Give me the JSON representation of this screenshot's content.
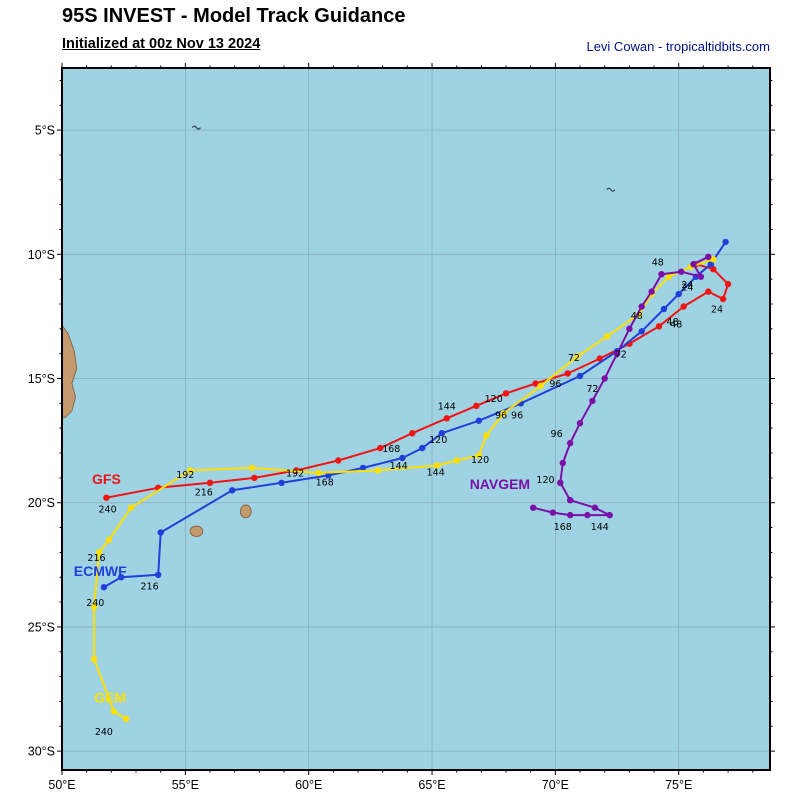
{
  "chart_data": {
    "type": "line",
    "title": "95S INVEST - Model Track Guidance",
    "subtitle": "Initialized at 00z Nov 13 2024",
    "credit": "Levi Cowan - tropicaltidbits.com",
    "map": {
      "lon_min": 50,
      "lon_max": 78.7,
      "lat_top_s": 2.5,
      "lat_bottom_s": 30.76,
      "x_ticks": [
        50,
        55,
        60,
        65,
        70,
        75
      ],
      "x_tick_labels": [
        "50°E",
        "55°E",
        "60°E",
        "65°E",
        "70°E",
        "75°E"
      ],
      "y_ticks": [
        5,
        10,
        15,
        20,
        25,
        30
      ],
      "y_tick_labels": [
        "5°S",
        "10°S",
        "15°S",
        "20°S",
        "25°S",
        "30°S"
      ],
      "grid": true,
      "legend_position": "on-track-labels"
    },
    "colors": {
      "ocean": "#9fd3e4",
      "land": "#c49a6c",
      "land_edge": "#7d5a3c",
      "grid": "#6f8694",
      "border": "#000000",
      "credit_text": "#001489",
      "hour_label": "#000000"
    },
    "series": [
      {
        "name": "GFS",
        "color": "#f01414",
        "name_label": {
          "text": "GFS",
          "lon": 51.8,
          "lat": 19.25
        },
        "points": [
          [
            75.7,
            10.4
          ],
          [
            76.4,
            10.6
          ],
          [
            77.0,
            11.2
          ],
          [
            76.8,
            11.8
          ],
          [
            76.2,
            11.5
          ],
          [
            75.2,
            12.1
          ],
          [
            74.2,
            12.9
          ],
          [
            73.0,
            13.6
          ],
          [
            71.8,
            14.2
          ],
          [
            70.5,
            14.8
          ],
          [
            69.2,
            15.2
          ],
          [
            68.0,
            15.6
          ],
          [
            66.8,
            16.1
          ],
          [
            65.6,
            16.6
          ],
          [
            64.2,
            17.2
          ],
          [
            62.9,
            17.8
          ],
          [
            61.2,
            18.3
          ],
          [
            59.5,
            18.7
          ],
          [
            57.8,
            19.0
          ],
          [
            56.0,
            19.2
          ],
          [
            53.9,
            19.4
          ],
          [
            51.8,
            19.8
          ]
        ],
        "labels": [
          {
            "text": "24",
            "lon": 76.55,
            "lat": 12.35
          },
          {
            "text": "48",
            "lon": 74.9,
            "lat": 12.95
          },
          {
            "text": "96",
            "lon": 70.0,
            "lat": 15.35
          },
          {
            "text": "120",
            "lon": 67.5,
            "lat": 15.95
          },
          {
            "text": "144",
            "lon": 65.6,
            "lat": 16.25
          },
          {
            "text": "168",
            "lon": 63.35,
            "lat": 17.95
          },
          {
            "text": "192",
            "lon": 59.45,
            "lat": 18.95
          },
          {
            "text": "216",
            "lon": 55.75,
            "lat": 19.7
          },
          {
            "text": "240",
            "lon": 51.85,
            "lat": 20.4
          }
        ]
      },
      {
        "name": "ECMWF",
        "color": "#2140d9",
        "name_label": {
          "text": "ECMWF",
          "lon": 51.55,
          "lat": 22.95
        },
        "points": [
          [
            76.9,
            9.5
          ],
          [
            76.3,
            10.4
          ],
          [
            75.7,
            10.9
          ],
          [
            75.0,
            11.6
          ],
          [
            74.4,
            12.2
          ],
          [
            73.5,
            13.1
          ],
          [
            72.5,
            13.9
          ],
          [
            71.0,
            14.9
          ],
          [
            68.6,
            16.0
          ],
          [
            66.9,
            16.7
          ],
          [
            65.4,
            17.2
          ],
          [
            64.6,
            17.8
          ],
          [
            63.8,
            18.2
          ],
          [
            62.2,
            18.6
          ],
          [
            60.8,
            18.9
          ],
          [
            58.9,
            19.2
          ],
          [
            56.9,
            19.5
          ],
          [
            54.0,
            21.2
          ],
          [
            53.9,
            22.9
          ],
          [
            52.4,
            23.0
          ],
          [
            51.7,
            23.4
          ]
        ],
        "labels": [
          {
            "text": "24",
            "lon": 75.35,
            "lat": 11.45
          },
          {
            "text": "48",
            "lon": 74.75,
            "lat": 12.85
          },
          {
            "text": "72",
            "lon": 72.65,
            "lat": 14.15
          },
          {
            "text": "96",
            "lon": 68.45,
            "lat": 16.6
          },
          {
            "text": "120",
            "lon": 65.25,
            "lat": 17.6
          },
          {
            "text": "144",
            "lon": 63.65,
            "lat": 18.65
          },
          {
            "text": "168",
            "lon": 60.65,
            "lat": 19.3
          },
          {
            "text": "216",
            "lon": 53.55,
            "lat": 23.5
          },
          {
            "text": "240",
            "lon": 51.35,
            "lat": 24.15
          }
        ]
      },
      {
        "name": "GEM",
        "color": "#ffdf00",
        "name_label": {
          "text": "GEM",
          "lon": 51.95,
          "lat": 28.05
        },
        "points": [
          [
            76.4,
            10.2
          ],
          [
            75.5,
            10.5
          ],
          [
            74.6,
            10.9
          ],
          [
            73.9,
            11.6
          ],
          [
            73.4,
            12.4
          ],
          [
            72.1,
            13.3
          ],
          [
            70.9,
            14.1
          ],
          [
            69.4,
            15.3
          ],
          [
            67.9,
            16.4
          ],
          [
            67.2,
            17.3
          ],
          [
            66.9,
            18.1
          ],
          [
            66.0,
            18.3
          ],
          [
            65.2,
            18.5
          ],
          [
            62.8,
            18.7
          ],
          [
            60.4,
            18.8
          ],
          [
            57.7,
            18.6
          ],
          [
            55.2,
            18.7
          ],
          [
            52.8,
            20.2
          ],
          [
            51.9,
            21.5
          ],
          [
            51.5,
            22.0
          ],
          [
            51.3,
            24.2
          ],
          [
            51.3,
            26.3
          ],
          [
            52.1,
            28.4
          ],
          [
            52.6,
            28.7
          ]
        ],
        "labels": [
          {
            "text": "48",
            "lon": 73.3,
            "lat": 12.6
          },
          {
            "text": "72",
            "lon": 70.75,
            "lat": 14.3
          },
          {
            "text": "96",
            "lon": 67.8,
            "lat": 16.6
          },
          {
            "text": "120",
            "lon": 66.95,
            "lat": 18.4
          },
          {
            "text": "144",
            "lon": 65.15,
            "lat": 18.9
          },
          {
            "text": "192",
            "lon": 55.0,
            "lat": 19.0
          },
          {
            "text": "216",
            "lon": 51.4,
            "lat": 22.35
          },
          {
            "text": "240",
            "lon": 51.7,
            "lat": 29.35
          }
        ]
      },
      {
        "name": "NAVGEM",
        "color": "#7a10a8",
        "name_label": {
          "text": "NAVGEM",
          "lon": 67.75,
          "lat": 19.45
        },
        "points": [
          [
            76.2,
            10.1
          ],
          [
            75.6,
            10.4
          ],
          [
            75.9,
            10.9
          ],
          [
            75.1,
            10.7
          ],
          [
            74.3,
            10.8
          ],
          [
            73.9,
            11.5
          ],
          [
            73.5,
            12.1
          ],
          [
            73.0,
            13.0
          ],
          [
            72.5,
            14.0
          ],
          [
            72.0,
            15.0
          ],
          [
            71.5,
            15.9
          ],
          [
            71.0,
            16.8
          ],
          [
            70.6,
            17.6
          ],
          [
            70.3,
            18.4
          ],
          [
            70.2,
            19.2
          ],
          [
            70.6,
            19.9
          ],
          [
            71.6,
            20.2
          ],
          [
            72.2,
            20.5
          ],
          [
            71.3,
            20.5
          ],
          [
            70.6,
            20.5
          ],
          [
            69.9,
            20.4
          ],
          [
            69.1,
            20.2
          ]
        ],
        "labels": [
          {
            "text": "24",
            "lon": 75.35,
            "lat": 11.35
          },
          {
            "text": "48",
            "lon": 74.15,
            "lat": 10.45
          },
          {
            "text": "72",
            "lon": 71.5,
            "lat": 15.55
          },
          {
            "text": "96",
            "lon": 70.05,
            "lat": 17.35
          },
          {
            "text": "120",
            "lon": 69.6,
            "lat": 19.2
          },
          {
            "text": "144",
            "lon": 71.8,
            "lat": 21.1
          },
          {
            "text": "168",
            "lon": 70.3,
            "lat": 21.1
          }
        ]
      }
    ],
    "islands": [
      {
        "name": "madagascar-coast",
        "type": "polygon",
        "pts": [
          [
            50.0,
            12.85
          ],
          [
            50.25,
            13.2
          ],
          [
            50.5,
            13.9
          ],
          [
            50.6,
            14.6
          ],
          [
            50.4,
            15.2
          ],
          [
            50.55,
            15.75
          ],
          [
            50.4,
            16.3
          ],
          [
            50.15,
            16.55
          ],
          [
            50.0,
            16.6
          ]
        ]
      },
      {
        "name": "reunion",
        "type": "ellipse",
        "c": [
          55.45,
          21.15
        ],
        "rx": 0.26,
        "ry": 0.21
      },
      {
        "name": "mauritius",
        "type": "ellipse",
        "c": [
          57.45,
          20.35
        ],
        "rx": 0.22,
        "ry": 0.26
      },
      {
        "name": "seychelles",
        "type": "mark",
        "c": [
          55.45,
          4.9
        ]
      },
      {
        "name": "diego-garcia",
        "type": "mark",
        "c": [
          72.25,
          7.4
        ]
      }
    ]
  }
}
